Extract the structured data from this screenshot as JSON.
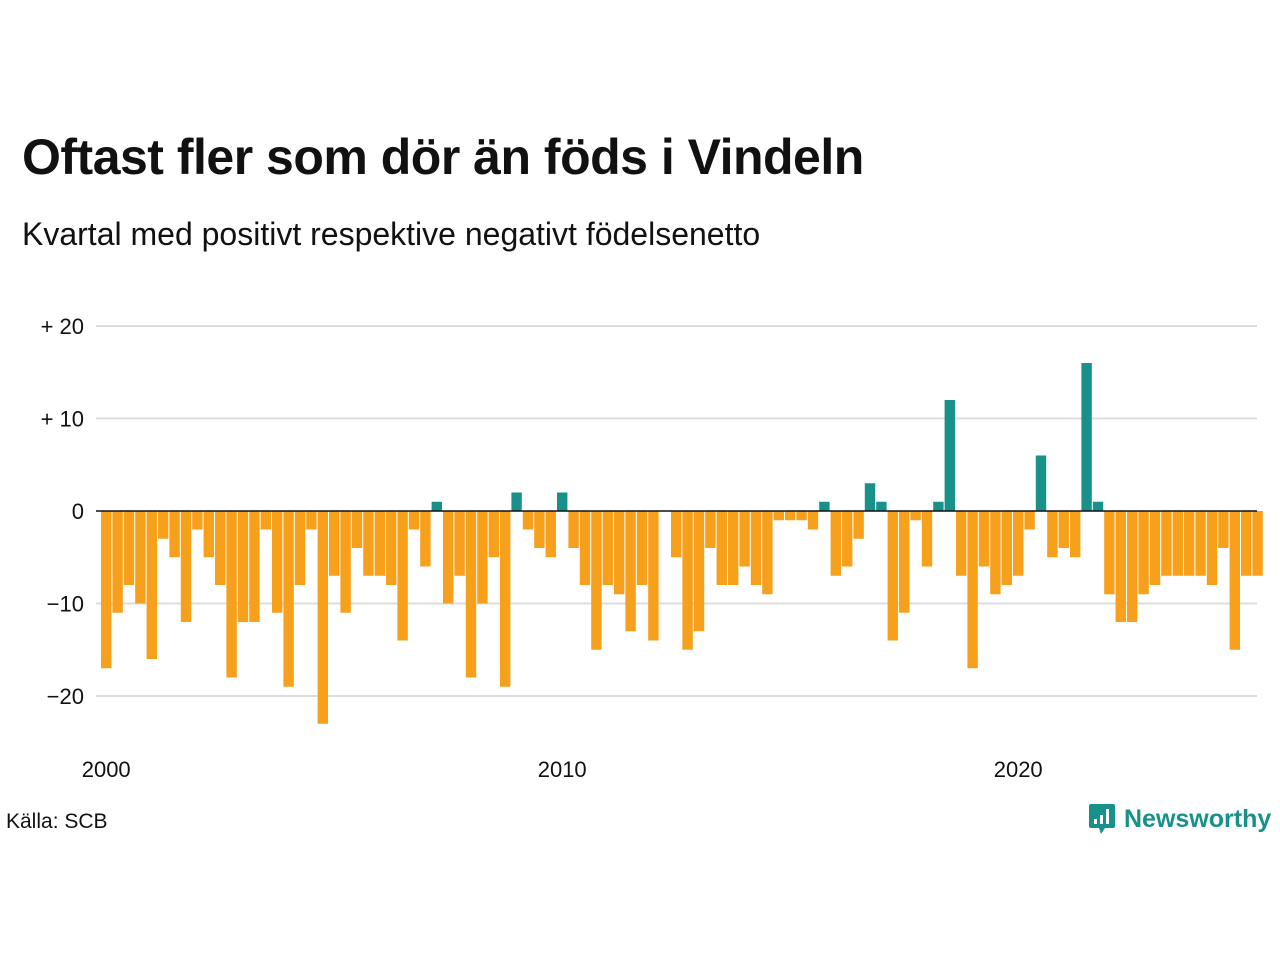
{
  "title": "Oftast fler som dör än föds i Vindeln",
  "subtitle": "Kvartal med positivt respektive negativt födelsenetto",
  "source": "Källa: SCB",
  "brand": {
    "name": "Newsworthy",
    "icon": "newsworthy-logo-icon"
  },
  "colors": {
    "positive": "#17918a",
    "negative": "#f6a01b",
    "grid": "#dddddd",
    "zero_line": "#111111",
    "brand": "#17918a"
  },
  "chart_data": {
    "type": "bar",
    "title": "Oftast fler som dör än föds i Vindeln",
    "subtitle": "Kvartal med positivt respektive negativt födelsenetto",
    "xlabel": "",
    "ylabel": "",
    "start": {
      "year": 2000,
      "quarter": 1
    },
    "ylim": [
      -25,
      20
    ],
    "yticks": [
      20,
      10,
      0,
      -10,
      -20
    ],
    "ytick_labels": [
      "+ 20",
      "+ 10",
      "0",
      "−10",
      "−20"
    ],
    "xticks": [
      2000,
      2010,
      2020
    ],
    "xtick_labels": [
      "2000",
      "2010",
      "2020"
    ],
    "grid": true,
    "values": [
      -17,
      -11,
      -8,
      -10,
      -16,
      -3,
      -5,
      -12,
      -2,
      -5,
      -8,
      -18,
      -12,
      -12,
      -2,
      -11,
      -19,
      -8,
      -2,
      -23,
      -7,
      -11,
      -4,
      -7,
      -7,
      -8,
      -14,
      -2,
      -6,
      1,
      -10,
      -7,
      -18,
      -10,
      -5,
      -19,
      2,
      -2,
      -4,
      -5,
      2,
      -4,
      -8,
      -15,
      -8,
      -9,
      -13,
      -8,
      -14,
      0,
      -5,
      -15,
      -13,
      -4,
      -8,
      -8,
      -6,
      -8,
      -9,
      -1,
      -1,
      -1,
      -2,
      1,
      -7,
      -6,
      -3,
      3,
      1,
      -14,
      -11,
      -1,
      -6,
      1,
      12,
      -7,
      -17,
      -6,
      -9,
      -8,
      -7,
      -2,
      6,
      -5,
      -4,
      -5,
      16,
      1,
      -9,
      -12,
      -12,
      -9,
      -8,
      -7,
      -7,
      -7,
      -7,
      -8,
      -4,
      -15,
      -7,
      -7
    ]
  }
}
